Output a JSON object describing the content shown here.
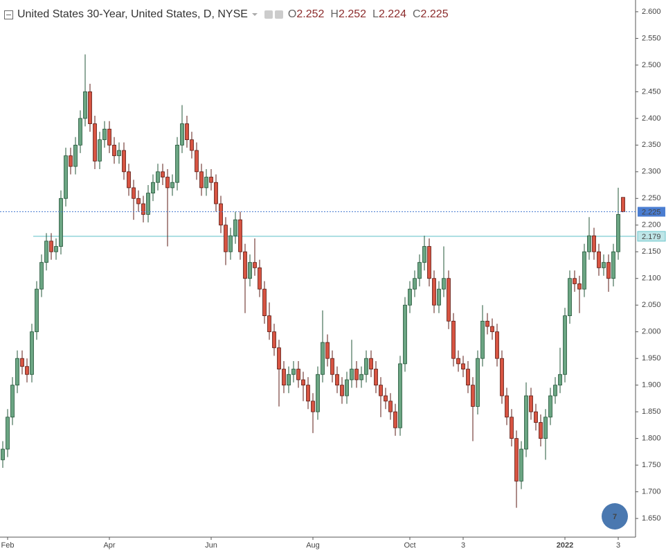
{
  "chart_data": {
    "type": "candlestick",
    "title": "United States 30-Year, United States, D, NYSE",
    "ohlc_labels": [
      "O",
      "H",
      "L",
      "C"
    ],
    "badge": "7",
    "up_color": "#6ba583",
    "down_color": "#d75442",
    "up_border": "#225437",
    "down_border": "#5b1a13",
    "price_line_color": "#4a7dd1",
    "horizontal_line": 2.179,
    "horizontal_line_color": "#6cc6cc",
    "ylim": [
      1.615,
      2.622
    ],
    "yticks": [
      {
        "value": 1.65,
        "label": "1.650"
      },
      {
        "value": 1.7,
        "label": "1.700"
      },
      {
        "value": 1.75,
        "label": "1.750"
      },
      {
        "value": 1.8,
        "label": "1.800"
      },
      {
        "value": 1.85,
        "label": "1.850"
      },
      {
        "value": 1.9,
        "label": "1.900"
      },
      {
        "value": 1.95,
        "label": "1.950"
      },
      {
        "value": 2.0,
        "label": "2.000"
      },
      {
        "value": 2.05,
        "label": "2.050"
      },
      {
        "value": 2.1,
        "label": "2.100"
      },
      {
        "value": 2.15,
        "label": "2.150"
      },
      {
        "value": 2.2,
        "label": "2.200"
      },
      {
        "value": 2.25,
        "label": "2.250"
      },
      {
        "value": 2.3,
        "label": "2.300"
      },
      {
        "value": 2.35,
        "label": "2.350"
      },
      {
        "value": 2.4,
        "label": "2.400"
      },
      {
        "value": 2.45,
        "label": "2.450"
      },
      {
        "value": 2.5,
        "label": "2.500"
      },
      {
        "value": 2.55,
        "label": "2.550"
      },
      {
        "value": 2.6,
        "label": "2.600"
      }
    ],
    "categories": [
      null,
      "Feb",
      null,
      null,
      null,
      null,
      null,
      null,
      null,
      null,
      null,
      null,
      null,
      null,
      null,
      null,
      null,
      null,
      null,
      null,
      null,
      null,
      "Apr",
      null,
      null,
      null,
      null,
      null,
      null,
      null,
      null,
      null,
      null,
      null,
      null,
      null,
      null,
      null,
      null,
      null,
      null,
      null,
      null,
      "Jun",
      null,
      null,
      null,
      null,
      null,
      null,
      null,
      null,
      null,
      null,
      null,
      null,
      null,
      null,
      null,
      null,
      null,
      null,
      null,
      null,
      "Aug",
      null,
      null,
      null,
      null,
      null,
      null,
      null,
      null,
      null,
      null,
      null,
      null,
      null,
      null,
      null,
      null,
      null,
      null,
      null,
      "Oct",
      null,
      null,
      null,
      null,
      null,
      null,
      null,
      null,
      null,
      null,
      "3",
      null,
      null,
      null,
      null,
      null,
      null,
      null,
      null,
      null,
      null,
      null,
      null,
      null,
      null,
      null,
      null,
      null,
      null,
      null,
      null,
      "2022",
      null,
      null,
      null,
      null,
      null,
      null,
      null,
      null,
      null,
      null,
      "3",
      null
    ],
    "ohlc": [
      [
        1.76,
        1.795,
        1.745,
        1.78
      ],
      [
        1.78,
        1.855,
        1.765,
        1.84
      ],
      [
        1.84,
        1.915,
        1.825,
        1.9
      ],
      [
        1.9,
        1.965,
        1.885,
        1.95
      ],
      [
        1.95,
        1.965,
        1.92,
        1.935
      ],
      [
        1.935,
        1.95,
        1.905,
        1.92
      ],
      [
        1.92,
        2.015,
        1.905,
        2.0
      ],
      [
        2.0,
        2.095,
        1.985,
        2.08
      ],
      [
        2.08,
        2.145,
        2.065,
        2.13
      ],
      [
        2.13,
        2.185,
        2.115,
        2.17
      ],
      [
        2.17,
        2.185,
        2.135,
        2.15
      ],
      [
        2.15,
        2.175,
        2.135,
        2.16
      ],
      [
        2.16,
        2.265,
        2.145,
        2.25
      ],
      [
        2.25,
        2.345,
        2.235,
        2.33
      ],
      [
        2.33,
        2.345,
        2.295,
        2.31
      ],
      [
        2.31,
        2.365,
        2.295,
        2.35
      ],
      [
        2.35,
        2.415,
        2.335,
        2.4
      ],
      [
        2.4,
        2.52,
        2.385,
        2.45
      ],
      [
        2.45,
        2.465,
        2.375,
        2.39
      ],
      [
        2.39,
        2.405,
        2.305,
        2.32
      ],
      [
        2.32,
        2.375,
        2.305,
        2.36
      ],
      [
        2.36,
        2.395,
        2.345,
        2.38
      ],
      [
        2.38,
        2.395,
        2.335,
        2.35
      ],
      [
        2.35,
        2.365,
        2.315,
        2.33
      ],
      [
        2.33,
        2.355,
        2.315,
        2.34
      ],
      [
        2.34,
        2.355,
        2.285,
        2.3
      ],
      [
        2.3,
        2.315,
        2.255,
        2.27
      ],
      [
        2.27,
        2.285,
        2.21,
        2.25
      ],
      [
        2.25,
        2.265,
        2.225,
        2.24
      ],
      [
        2.24,
        2.255,
        2.205,
        2.22
      ],
      [
        2.22,
        2.275,
        2.205,
        2.26
      ],
      [
        2.26,
        2.295,
        2.245,
        2.28
      ],
      [
        2.28,
        2.315,
        2.265,
        2.3
      ],
      [
        2.3,
        2.315,
        2.275,
        2.29
      ],
      [
        2.29,
        2.305,
        2.16,
        2.27
      ],
      [
        2.27,
        2.295,
        2.255,
        2.28
      ],
      [
        2.28,
        2.365,
        2.265,
        2.35
      ],
      [
        2.35,
        2.425,
        2.335,
        2.39
      ],
      [
        2.39,
        2.405,
        2.345,
        2.36
      ],
      [
        2.36,
        2.375,
        2.325,
        2.34
      ],
      [
        2.34,
        2.355,
        2.285,
        2.3
      ],
      [
        2.3,
        2.315,
        2.255,
        2.27
      ],
      [
        2.27,
        2.305,
        2.255,
        2.29
      ],
      [
        2.29,
        2.305,
        2.265,
        2.28
      ],
      [
        2.28,
        2.295,
        2.225,
        2.24
      ],
      [
        2.24,
        2.255,
        2.185,
        2.2
      ],
      [
        2.2,
        2.215,
        2.125,
        2.15
      ],
      [
        2.15,
        2.195,
        2.135,
        2.18
      ],
      [
        2.18,
        2.225,
        2.165,
        2.21
      ],
      [
        2.21,
        2.225,
        2.135,
        2.15
      ],
      [
        2.15,
        2.165,
        2.035,
        2.1
      ],
      [
        2.1,
        2.145,
        2.085,
        2.13
      ],
      [
        2.13,
        2.175,
        2.105,
        2.12
      ],
      [
        2.12,
        2.135,
        2.065,
        2.08
      ],
      [
        2.08,
        2.095,
        2.015,
        2.03
      ],
      [
        2.03,
        2.055,
        1.985,
        2.0
      ],
      [
        2.0,
        2.015,
        1.955,
        1.97
      ],
      [
        1.97,
        1.985,
        1.86,
        1.93
      ],
      [
        1.93,
        1.945,
        1.885,
        1.9
      ],
      [
        1.9,
        1.935,
        1.885,
        1.92
      ],
      [
        1.92,
        1.945,
        1.905,
        1.93
      ],
      [
        1.93,
        1.945,
        1.895,
        1.91
      ],
      [
        1.91,
        1.925,
        1.87,
        1.9
      ],
      [
        1.9,
        1.915,
        1.855,
        1.87
      ],
      [
        1.87,
        1.885,
        1.81,
        1.85
      ],
      [
        1.85,
        1.935,
        1.835,
        1.92
      ],
      [
        1.92,
        2.04,
        1.905,
        1.98
      ],
      [
        1.98,
        1.995,
        1.935,
        1.95
      ],
      [
        1.95,
        1.965,
        1.905,
        1.92
      ],
      [
        1.92,
        1.935,
        1.885,
        1.9
      ],
      [
        1.9,
        1.915,
        1.865,
        1.88
      ],
      [
        1.88,
        1.925,
        1.865,
        1.91
      ],
      [
        1.91,
        1.985,
        1.895,
        1.93
      ],
      [
        1.93,
        1.945,
        1.895,
        1.91
      ],
      [
        1.91,
        1.935,
        1.895,
        1.92
      ],
      [
        1.92,
        1.965,
        1.905,
        1.95
      ],
      [
        1.95,
        1.965,
        1.915,
        1.93
      ],
      [
        1.93,
        1.945,
        1.885,
        1.9
      ],
      [
        1.9,
        1.915,
        1.84,
        1.88
      ],
      [
        1.88,
        1.895,
        1.855,
        1.87
      ],
      [
        1.87,
        1.885,
        1.835,
        1.85
      ],
      [
        1.85,
        1.865,
        1.805,
        1.82
      ],
      [
        1.82,
        1.955,
        1.805,
        1.94
      ],
      [
        1.94,
        2.065,
        1.925,
        2.05
      ],
      [
        2.05,
        2.095,
        2.035,
        2.08
      ],
      [
        2.08,
        2.115,
        2.065,
        2.1
      ],
      [
        2.1,
        2.145,
        2.085,
        2.13
      ],
      [
        2.13,
        2.18,
        2.115,
        2.16
      ],
      [
        2.16,
        2.175,
        2.085,
        2.1
      ],
      [
        2.1,
        2.115,
        2.035,
        2.05
      ],
      [
        2.05,
        2.095,
        2.035,
        2.08
      ],
      [
        2.08,
        2.16,
        2.065,
        2.1
      ],
      [
        2.1,
        2.115,
        2.005,
        2.02
      ],
      [
        2.02,
        2.035,
        1.935,
        1.95
      ],
      [
        1.95,
        1.965,
        1.925,
        1.94
      ],
      [
        1.94,
        1.955,
        1.915,
        1.93
      ],
      [
        1.93,
        1.945,
        1.885,
        1.9
      ],
      [
        1.9,
        1.915,
        1.795,
        1.86
      ],
      [
        1.86,
        1.965,
        1.845,
        1.95
      ],
      [
        1.95,
        2.05,
        1.935,
        2.02
      ],
      [
        2.02,
        2.035,
        1.995,
        2.01
      ],
      [
        2.01,
        2.025,
        1.985,
        2.0
      ],
      [
        2.0,
        2.015,
        1.935,
        1.95
      ],
      [
        1.95,
        1.965,
        1.865,
        1.88
      ],
      [
        1.88,
        1.895,
        1.825,
        1.84
      ],
      [
        1.84,
        1.855,
        1.785,
        1.8
      ],
      [
        1.8,
        1.815,
        1.67,
        1.72
      ],
      [
        1.72,
        1.795,
        1.705,
        1.78
      ],
      [
        1.78,
        1.905,
        1.765,
        1.88
      ],
      [
        1.88,
        1.895,
        1.835,
        1.85
      ],
      [
        1.85,
        1.865,
        1.815,
        1.83
      ],
      [
        1.83,
        1.845,
        1.785,
        1.8
      ],
      [
        1.8,
        1.855,
        1.76,
        1.84
      ],
      [
        1.84,
        1.895,
        1.825,
        1.88
      ],
      [
        1.88,
        1.915,
        1.865,
        1.9
      ],
      [
        1.9,
        1.97,
        1.885,
        1.92
      ],
      [
        1.92,
        2.045,
        1.905,
        2.03
      ],
      [
        2.03,
        2.115,
        2.015,
        2.1
      ],
      [
        2.1,
        2.115,
        2.075,
        2.09
      ],
      [
        2.09,
        2.105,
        2.035,
        2.08
      ],
      [
        2.08,
        2.165,
        2.065,
        2.15
      ],
      [
        2.15,
        2.215,
        2.135,
        2.18
      ],
      [
        2.18,
        2.195,
        2.135,
        2.15
      ],
      [
        2.15,
        2.165,
        2.105,
        2.12
      ],
      [
        2.12,
        2.145,
        2.105,
        2.13
      ],
      [
        2.13,
        2.145,
        2.075,
        2.1
      ],
      [
        2.1,
        2.165,
        2.085,
        2.15
      ],
      [
        2.15,
        2.27,
        2.135,
        2.22
      ],
      [
        2.252,
        2.252,
        2.224,
        2.225
      ]
    ]
  }
}
